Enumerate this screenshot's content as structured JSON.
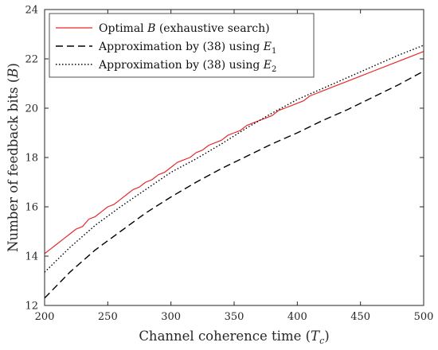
{
  "chart_data": {
    "type": "line",
    "xlabel": "Channel coherence time (",
    "xlabel_symbol": "T",
    "xlabel_sub": "c",
    "xlabel_close": ")",
    "ylabel": "Number of feedback bits (",
    "ylabel_symbol": "B",
    "ylabel_close": ")",
    "xlim": [
      200,
      500
    ],
    "ylim": [
      12,
      24
    ],
    "xticks": [
      200,
      250,
      300,
      350,
      400,
      450,
      500
    ],
    "yticks": [
      12,
      14,
      16,
      18,
      20,
      22,
      24
    ],
    "grid": false,
    "legend_position": "top-left",
    "series": [
      {
        "legend_pre": "Optimal ",
        "legend_symbol": "B",
        "legend_sub": "",
        "legend_post": " (exhaustive search)",
        "color": "#e8282b",
        "style": "solid",
        "x": [
          200,
          205,
          210,
          215,
          220,
          225,
          230,
          235,
          240,
          245,
          250,
          255,
          260,
          265,
          270,
          275,
          280,
          285,
          290,
          295,
          300,
          305,
          310,
          315,
          320,
          325,
          330,
          335,
          340,
          345,
          350,
          355,
          360,
          365,
          370,
          375,
          380,
          385,
          390,
          395,
          400,
          405,
          410,
          420,
          430,
          440,
          450,
          460,
          470,
          480,
          490,
          500
        ],
        "y": [
          14.1,
          14.3,
          14.5,
          14.7,
          14.9,
          15.1,
          15.2,
          15.5,
          15.6,
          15.8,
          16.0,
          16.1,
          16.3,
          16.5,
          16.7,
          16.8,
          17.0,
          17.1,
          17.3,
          17.4,
          17.6,
          17.8,
          17.9,
          18.0,
          18.2,
          18.3,
          18.5,
          18.6,
          18.7,
          18.9,
          19.0,
          19.1,
          19.3,
          19.4,
          19.5,
          19.6,
          19.7,
          19.9,
          20.0,
          20.1,
          20.2,
          20.3,
          20.5,
          20.7,
          20.9,
          21.1,
          21.3,
          21.5,
          21.7,
          21.9,
          22.1,
          22.3
        ]
      },
      {
        "legend_pre": "Approximation by (38) using ",
        "legend_symbol": "E",
        "legend_sub": "1",
        "legend_post": "",
        "color": "#000000",
        "style": "dashed",
        "x": [
          200,
          220,
          240,
          260,
          280,
          300,
          320,
          340,
          360,
          380,
          400,
          420,
          440,
          460,
          480,
          500
        ],
        "y": [
          12.3,
          13.35,
          14.25,
          15.0,
          15.75,
          16.4,
          17.0,
          17.55,
          18.05,
          18.55,
          19.0,
          19.5,
          19.95,
          20.45,
          20.95,
          21.5
        ]
      },
      {
        "legend_pre": "Approximation by (38) using ",
        "legend_symbol": "E",
        "legend_sub": "2",
        "legend_post": "",
        "color": "#000000",
        "style": "dotted",
        "x": [
          200,
          220,
          240,
          260,
          280,
          300,
          320,
          340,
          360,
          380,
          400,
          420,
          440,
          460,
          480,
          500
        ],
        "y": [
          13.35,
          14.35,
          15.25,
          16.0,
          16.7,
          17.4,
          17.95,
          18.55,
          19.2,
          19.8,
          20.35,
          20.8,
          21.25,
          21.7,
          22.15,
          22.55
        ]
      }
    ]
  }
}
